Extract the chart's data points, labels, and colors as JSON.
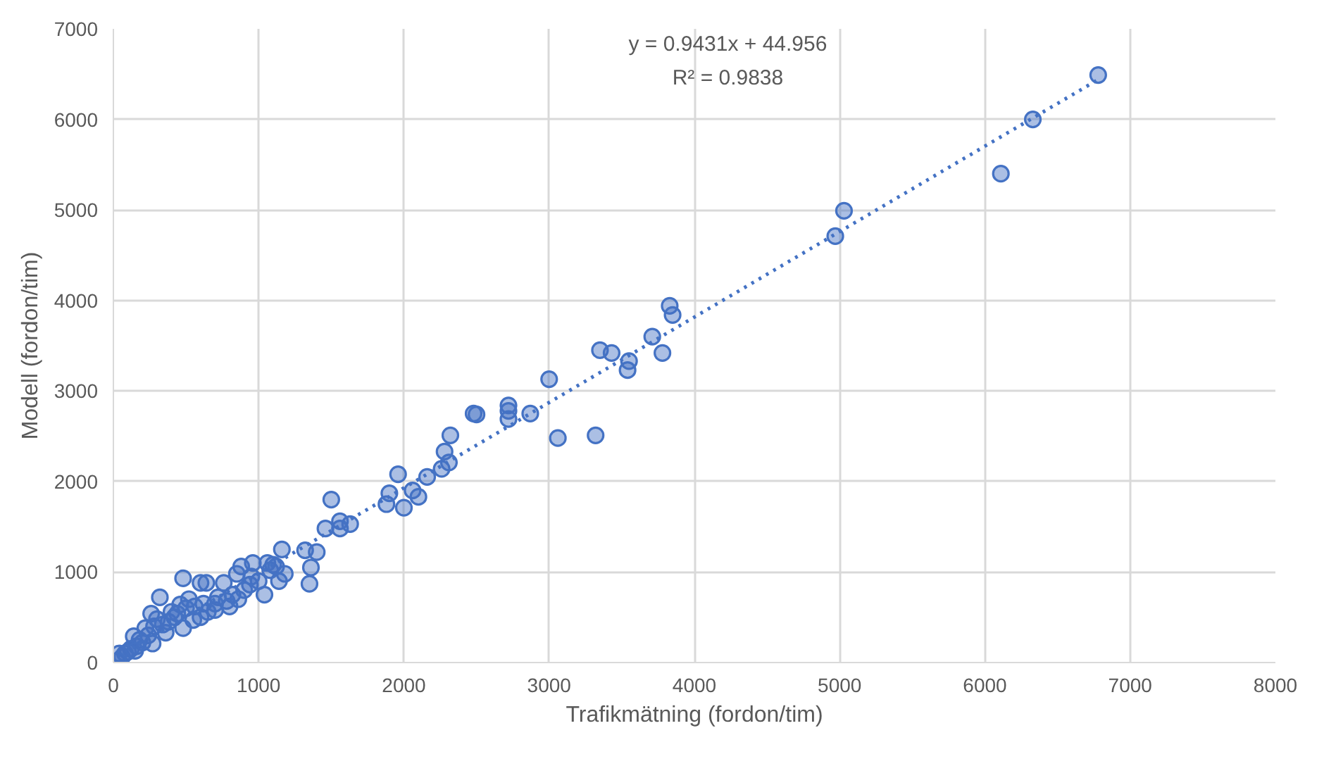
{
  "chart_data": {
    "type": "scatter",
    "xlabel": "Trafikmätning (fordon/tim)",
    "ylabel": "Modell (fordon/tim)",
    "xlim": [
      0,
      8000
    ],
    "ylim": [
      0,
      7000
    ],
    "xticks": [
      0,
      1000,
      2000,
      3000,
      4000,
      5000,
      6000,
      7000,
      8000
    ],
    "yticks": [
      0,
      1000,
      2000,
      3000,
      4000,
      5000,
      6000,
      7000
    ],
    "grid": true,
    "annotations": [
      "y = 0.9431x + 44.956",
      "R² = 0.9838"
    ],
    "series": [
      {
        "color": "#4472c4",
        "marker": "circle",
        "x": [
          6780,
          6330,
          6110,
          5030,
          4970,
          3830,
          3850,
          3710,
          3780,
          3350,
          3430,
          3550,
          3540,
          3000,
          3060,
          3320,
          2720,
          2720,
          2720,
          2870,
          2480,
          2500,
          2320,
          2280,
          2310,
          2260,
          1960,
          2060,
          2100,
          2160,
          2000,
          1880,
          1900,
          1500,
          1630,
          1560,
          1560,
          1460,
          1400,
          1320,
          1360,
          1350,
          1160,
          1180,
          1140,
          1100,
          1060,
          1040,
          960,
          940,
          880,
          850,
          820,
          860,
          780,
          760,
          720,
          700,
          640,
          620,
          600,
          560,
          520,
          500,
          480,
          460,
          440,
          400,
          380,
          360,
          320,
          300,
          280,
          260,
          240,
          220,
          200,
          180,
          160,
          140,
          120,
          100,
          80,
          60,
          40,
          30,
          600,
          700,
          900,
          1000,
          550,
          420,
          340,
          650,
          480,
          270,
          150,
          1080,
          800,
          950,
          1120
        ],
        "values": [
          6490,
          6000,
          5400,
          4990,
          4710,
          3940,
          3840,
          3600,
          3420,
          3450,
          3420,
          3330,
          3230,
          3130,
          2480,
          2510,
          2840,
          2780,
          2690,
          2750,
          2750,
          2740,
          2510,
          2330,
          2210,
          2140,
          2080,
          1900,
          1830,
          2050,
          1710,
          1750,
          1870,
          1800,
          1530,
          1560,
          1480,
          1480,
          1220,
          1240,
          1050,
          870,
          1250,
          980,
          900,
          1080,
          1100,
          750,
          1100,
          860,
          1060,
          980,
          750,
          700,
          680,
          880,
          720,
          580,
          880,
          650,
          880,
          620,
          700,
          600,
          930,
          640,
          540,
          560,
          450,
          330,
          720,
          480,
          400,
          540,
          300,
          380,
          220,
          250,
          180,
          290,
          150,
          120,
          100,
          60,
          100,
          20,
          500,
          650,
          800,
          900,
          470,
          500,
          420,
          560,
          380,
          210,
          130,
          1020,
          620,
          950,
          1060
        ]
      },
      {
        "type": "line",
        "color": "#4472c4",
        "marker": "none",
        "line_style": "dotted",
        "x": [
          30,
          6780
        ],
        "values": [
          70,
          6440
        ]
      }
    ]
  }
}
